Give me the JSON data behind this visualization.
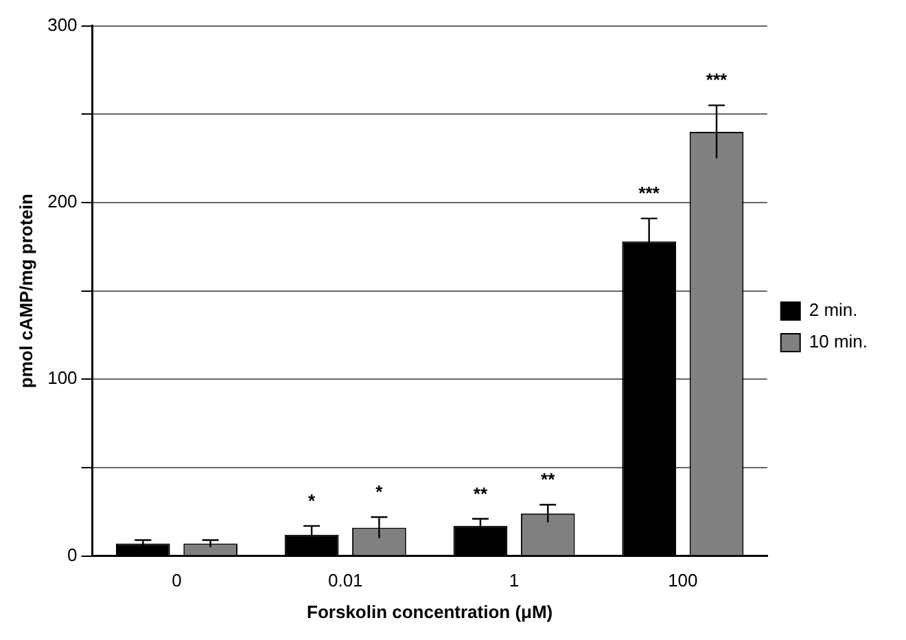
{
  "chart_data": {
    "type": "bar",
    "xlabel": "Forskolin concentration (μM)",
    "ylabel": "pmol cAMP/mg protein",
    "categories": [
      "0",
      "0.01",
      "1",
      "100"
    ],
    "series": [
      {
        "name": "2 min.",
        "color": "#000000",
        "values": [
          7,
          12,
          17,
          178
        ],
        "errors": [
          2,
          5,
          4,
          13
        ],
        "value_labels": [
          null,
          "*",
          "**",
          "***"
        ]
      },
      {
        "name": "10 min.",
        "color": "#808080",
        "values": [
          7,
          16,
          24,
          240
        ],
        "errors": [
          2,
          6,
          5,
          15
        ],
        "value_labels": [
          null,
          "*",
          "**",
          "***"
        ]
      }
    ],
    "ylim": [
      0,
      300
    ],
    "yticks": [
      0,
      {
        "value": 50,
        "label": null
      },
      100,
      {
        "value": 150,
        "label": null
      },
      200,
      {
        "value": 250,
        "label": null
      },
      300
    ],
    "grid": "y",
    "legend": "right"
  }
}
